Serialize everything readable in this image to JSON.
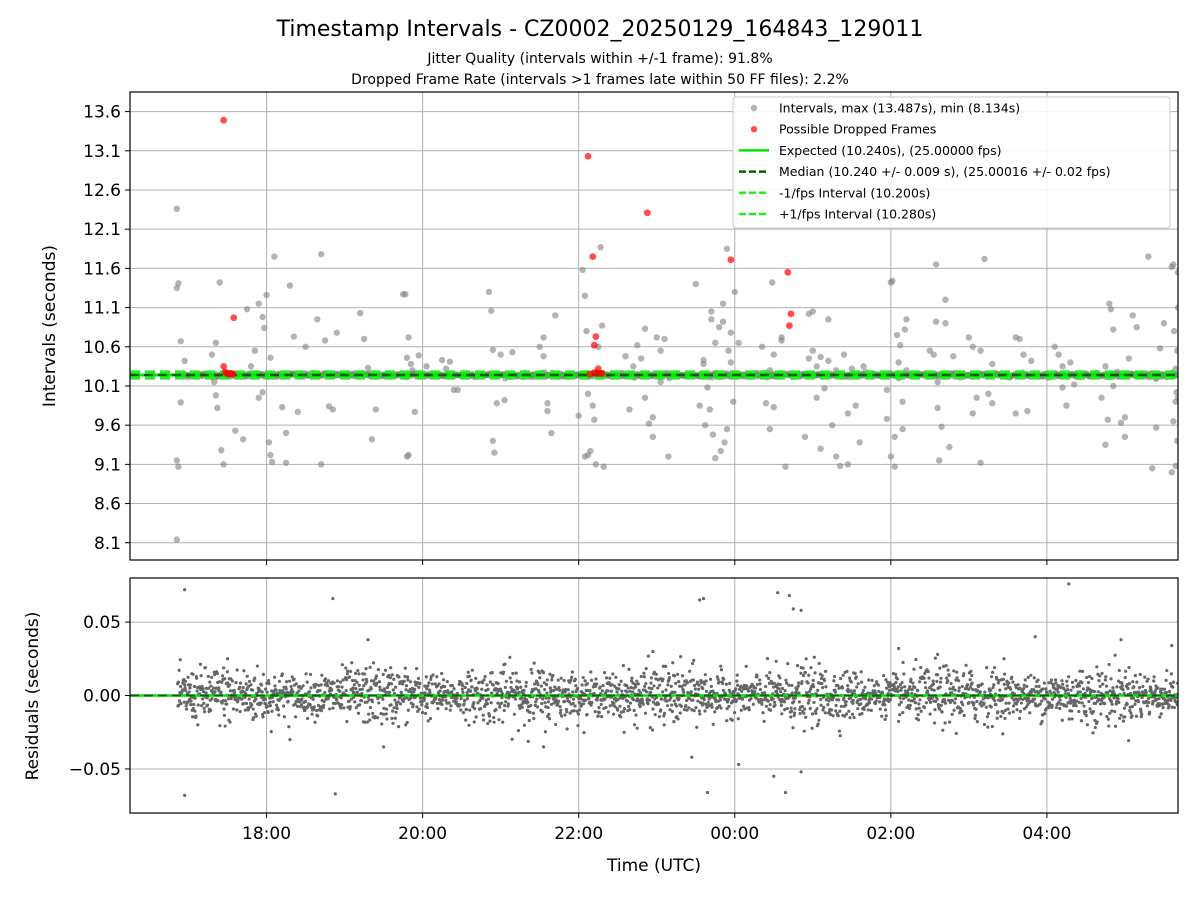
{
  "title": "Timestamp Intervals - CZ0002_20250129_164843_129011",
  "subtitle_line1": "Jitter Quality (intervals within +/-1 frame): 91.8%",
  "subtitle_line2": "Dropped Frame Rate (intervals >1 frames late within 50 FF files): 2.2%",
  "colors": {
    "intervals": "#808080",
    "dropped": "#ff0000",
    "expected": "#00e600",
    "median": "#006400",
    "fps_interval": "#22ee22",
    "residuals": "#666666",
    "grid": "#b0b0b0"
  },
  "chart_data": [
    {
      "type": "scatter",
      "title": "",
      "ylabel": "Intervals (seconds)",
      "xlabel": "",
      "x_range_hours": [
        16.25,
        29.68
      ],
      "ylim": [
        7.88,
        13.85
      ],
      "yticks": [
        8.1,
        8.6,
        9.1,
        9.6,
        10.1,
        10.6,
        11.1,
        11.6,
        12.1,
        12.6,
        13.1,
        13.6
      ],
      "ytick_labels": [
        "8.1",
        "8.6",
        "9.1",
        "9.6",
        "10.1",
        "10.6",
        "11.1",
        "11.6",
        "12.1",
        "12.6",
        "13.1",
        "13.6"
      ],
      "grid": true,
      "legend_position": "top-right",
      "legend": [
        {
          "label": "Intervals, max (13.487s), min (8.134s)",
          "kind": "dot",
          "color": "#808080"
        },
        {
          "label": "Possible Dropped Frames",
          "kind": "dot",
          "color": "#ff0000"
        },
        {
          "label": "Expected (10.240s), (25.00000 fps)",
          "kind": "solid",
          "color": "#00e600"
        },
        {
          "label": "Median (10.240 +/- 0.009 s), (25.00016 +/- 0.02 fps)",
          "kind": "dashed",
          "color": "#006400"
        },
        {
          "label": "-1/fps Interval (10.200s)",
          "kind": "dashed",
          "color": "#22ee22"
        },
        {
          "label": "+1/fps Interval (10.280s)",
          "kind": "dashed",
          "color": "#22ee22"
        }
      ],
      "expected": 10.24,
      "median": 10.24,
      "minus_fps": 10.2,
      "plus_fps": 10.28,
      "intervals_max": 13.487,
      "intervals_min": 8.134,
      "time_start": 16.86,
      "time_end": 29.68,
      "outliers": [
        [
          16.85,
          12.36
        ],
        [
          16.85,
          11.35
        ],
        [
          16.87,
          11.41
        ],
        [
          16.9,
          10.67
        ],
        [
          16.85,
          9.15
        ],
        [
          16.87,
          9.07
        ],
        [
          16.9,
          9.89
        ],
        [
          16.85,
          8.14
        ],
        [
          16.95,
          10.42
        ],
        [
          17.3,
          10.5
        ],
        [
          17.33,
          10.15
        ],
        [
          17.35,
          9.98
        ],
        [
          17.37,
          9.82
        ],
        [
          17.4,
          11.42
        ],
        [
          17.42,
          9.28
        ],
        [
          17.45,
          9.1
        ],
        [
          17.35,
          10.65
        ],
        [
          17.6,
          9.53
        ],
        [
          17.75,
          11.08
        ],
        [
          17.8,
          10.35
        ],
        [
          17.85,
          10.55
        ],
        [
          17.9,
          11.15
        ],
        [
          17.95,
          10.98
        ],
        [
          17.97,
          10.84
        ],
        [
          18.0,
          11.26
        ],
        [
          18.03,
          9.38
        ],
        [
          18.05,
          9.22
        ],
        [
          18.07,
          9.13
        ],
        [
          18.1,
          11.75
        ],
        [
          17.9,
          9.95
        ],
        [
          17.95,
          10.02
        ],
        [
          18.05,
          10.46
        ],
        [
          17.7,
          9.42
        ],
        [
          18.2,
          9.83
        ],
        [
          18.25,
          9.12
        ],
        [
          18.3,
          11.38
        ],
        [
          18.35,
          10.73
        ],
        [
          18.4,
          9.77
        ],
        [
          18.5,
          10.6
        ],
        [
          18.25,
          9.5
        ],
        [
          18.3,
          10.26
        ],
        [
          18.7,
          11.78
        ],
        [
          18.75,
          10.68
        ],
        [
          18.8,
          9.84
        ],
        [
          18.85,
          9.8
        ],
        [
          18.9,
          10.78
        ],
        [
          18.7,
          9.1
        ],
        [
          18.65,
          10.95
        ],
        [
          19.2,
          11.03
        ],
        [
          19.25,
          10.7
        ],
        [
          19.3,
          10.33
        ],
        [
          19.35,
          9.42
        ],
        [
          19.4,
          9.8
        ],
        [
          19.5,
          10.23
        ],
        [
          19.75,
          11.27
        ],
        [
          19.78,
          11.27
        ],
        [
          19.8,
          10.46
        ],
        [
          19.82,
          10.72
        ],
        [
          19.85,
          10.38
        ],
        [
          19.87,
          10.3
        ],
        [
          19.9,
          9.77
        ],
        [
          19.8,
          9.2
        ],
        [
          19.82,
          9.22
        ],
        [
          19.95,
          10.49
        ],
        [
          20.05,
          10.35
        ],
        [
          20.25,
          10.43
        ],
        [
          20.3,
          10.32
        ],
        [
          20.35,
          10.41
        ],
        [
          20.4,
          10.05
        ],
        [
          20.45,
          10.05
        ],
        [
          20.85,
          11.3
        ],
        [
          20.88,
          11.06
        ],
        [
          20.9,
          9.4
        ],
        [
          20.92,
          9.25
        ],
        [
          20.95,
          9.88
        ],
        [
          21.0,
          10.5
        ],
        [
          21.05,
          9.92
        ],
        [
          20.9,
          10.56
        ],
        [
          21.15,
          10.53
        ],
        [
          21.5,
          10.6
        ],
        [
          21.55,
          10.72
        ],
        [
          21.6,
          9.88
        ],
        [
          21.65,
          9.5
        ],
        [
          21.55,
          10.48
        ],
        [
          21.6,
          9.78
        ],
        [
          21.7,
          11.0
        ],
        [
          22.0,
          9.72
        ],
        [
          22.05,
          11.58
        ],
        [
          22.08,
          11.25
        ],
        [
          22.1,
          10.8
        ],
        [
          22.12,
          10.0
        ],
        [
          22.15,
          9.27
        ],
        [
          22.18,
          9.85
        ],
        [
          22.2,
          9.67
        ],
        [
          22.22,
          9.1
        ],
        [
          22.25,
          10.6
        ],
        [
          22.28,
          11.87
        ],
        [
          22.3,
          10.87
        ],
        [
          22.32,
          9.07
        ],
        [
          22.08,
          9.2
        ],
        [
          22.12,
          9.22
        ],
        [
          22.6,
          10.48
        ],
        [
          22.65,
          9.8
        ],
        [
          22.7,
          10.35
        ],
        [
          22.75,
          10.62
        ],
        [
          22.8,
          10.45
        ],
        [
          22.85,
          10.83
        ],
        [
          22.9,
          9.62
        ],
        [
          22.95,
          9.45
        ],
        [
          23.0,
          10.72
        ],
        [
          23.05,
          10.55
        ],
        [
          23.1,
          10.7
        ],
        [
          23.15,
          9.2
        ],
        [
          22.85,
          9.95
        ],
        [
          22.95,
          9.7
        ],
        [
          23.05,
          10.15
        ],
        [
          23.5,
          11.4
        ],
        [
          23.55,
          9.85
        ],
        [
          23.6,
          10.43
        ],
        [
          23.62,
          9.6
        ],
        [
          23.65,
          10.08
        ],
        [
          23.68,
          9.8
        ],
        [
          23.7,
          11.05
        ],
        [
          23.72,
          9.48
        ],
        [
          23.75,
          10.65
        ],
        [
          23.78,
          10.25
        ],
        [
          23.8,
          10.85
        ],
        [
          23.82,
          9.27
        ],
        [
          23.85,
          10.92
        ],
        [
          23.87,
          9.38
        ],
        [
          23.9,
          9.55
        ],
        [
          23.92,
          10.55
        ],
        [
          23.95,
          10.78
        ],
        [
          23.98,
          9.9
        ],
        [
          24.0,
          11.3
        ],
        [
          23.6,
          10.38
        ],
        [
          23.7,
          10.95
        ],
        [
          23.75,
          9.18
        ],
        [
          23.85,
          11.15
        ],
        [
          23.9,
          11.85
        ],
        [
          23.95,
          10.4
        ],
        [
          24.05,
          10.65
        ],
        [
          24.35,
          10.6
        ],
        [
          24.4,
          9.88
        ],
        [
          24.45,
          9.55
        ],
        [
          24.48,
          11.42
        ],
        [
          24.5,
          10.5
        ],
        [
          24.55,
          10.25
        ],
        [
          24.6,
          10.68
        ],
        [
          24.65,
          9.07
        ],
        [
          24.45,
          10.3
        ],
        [
          24.5,
          9.83
        ],
        [
          24.6,
          10.72
        ],
        [
          24.9,
          9.45
        ],
        [
          24.95,
          10.45
        ],
        [
          25.0,
          10.55
        ],
        [
          25.05,
          10.35
        ],
        [
          25.1,
          9.3
        ],
        [
          25.15,
          10.07
        ],
        [
          25.2,
          10.95
        ],
        [
          25.25,
          9.6
        ],
        [
          25.3,
          10.3
        ],
        [
          25.35,
          9.08
        ],
        [
          25.4,
          10.5
        ],
        [
          25.45,
          9.75
        ],
        [
          25.5,
          10.32
        ],
        [
          25.55,
          9.85
        ],
        [
          25.6,
          9.38
        ],
        [
          25.65,
          10.35
        ],
        [
          24.95,
          11.02
        ],
        [
          25.0,
          11.05
        ],
        [
          25.05,
          9.95
        ],
        [
          25.1,
          10.47
        ],
        [
          25.2,
          10.42
        ],
        [
          25.3,
          9.2
        ],
        [
          25.45,
          9.1
        ],
        [
          25.95,
          9.68
        ],
        [
          26.0,
          11.42
        ],
        [
          26.02,
          11.44
        ],
        [
          26.05,
          9.45
        ],
        [
          26.08,
          10.75
        ],
        [
          26.1,
          10.4
        ],
        [
          26.12,
          10.62
        ],
        [
          26.15,
          9.9
        ],
        [
          26.18,
          10.82
        ],
        [
          26.2,
          10.3
        ],
        [
          25.95,
          10.05
        ],
        [
          26.0,
          9.2
        ],
        [
          26.05,
          9.07
        ],
        [
          26.1,
          10.2
        ],
        [
          26.15,
          9.55
        ],
        [
          26.2,
          10.95
        ],
        [
          26.5,
          10.55
        ],
        [
          26.55,
          10.5
        ],
        [
          26.58,
          11.65
        ],
        [
          26.6,
          9.82
        ],
        [
          26.62,
          9.15
        ],
        [
          26.65,
          9.58
        ],
        [
          26.7,
          11.2
        ],
        [
          26.72,
          10.25
        ],
        [
          26.75,
          9.32
        ],
        [
          26.8,
          10.48
        ],
        [
          26.58,
          10.92
        ],
        [
          26.6,
          10.15
        ],
        [
          26.7,
          10.9
        ],
        [
          27.0,
          10.72
        ],
        [
          27.05,
          10.6
        ],
        [
          27.1,
          9.95
        ],
        [
          27.15,
          9.12
        ],
        [
          27.2,
          11.72
        ],
        [
          27.25,
          10.0
        ],
        [
          27.3,
          10.38
        ],
        [
          27.05,
          9.75
        ],
        [
          27.15,
          10.55
        ],
        [
          27.3,
          9.88
        ],
        [
          27.6,
          10.72
        ],
        [
          27.65,
          10.7
        ],
        [
          27.7,
          10.5
        ],
        [
          27.75,
          9.78
        ],
        [
          27.6,
          9.75
        ],
        [
          27.8,
          10.42
        ],
        [
          28.1,
          10.6
        ],
        [
          28.15,
          10.5
        ],
        [
          28.2,
          10.08
        ],
        [
          28.25,
          9.85
        ],
        [
          28.3,
          10.4
        ],
        [
          28.35,
          10.12
        ],
        [
          28.2,
          10.35
        ],
        [
          28.7,
          9.95
        ],
        [
          28.75,
          10.35
        ],
        [
          28.78,
          9.67
        ],
        [
          28.8,
          11.15
        ],
        [
          28.82,
          11.08
        ],
        [
          28.85,
          10.82
        ],
        [
          28.9,
          10.28
        ],
        [
          28.95,
          9.63
        ],
        [
          29.0,
          9.45
        ],
        [
          29.05,
          10.45
        ],
        [
          29.1,
          11.0
        ],
        [
          29.15,
          10.85
        ],
        [
          28.75,
          9.35
        ],
        [
          28.85,
          10.1
        ],
        [
          29.0,
          9.7
        ],
        [
          29.3,
          11.75
        ],
        [
          29.35,
          9.05
        ],
        [
          29.4,
          9.57
        ],
        [
          29.45,
          10.58
        ],
        [
          29.5,
          10.9
        ],
        [
          29.4,
          10.2
        ],
        [
          29.6,
          11.62
        ],
        [
          29.62,
          11.65
        ],
        [
          29.63,
          10.8
        ],
        [
          29.65,
          10.32
        ],
        [
          29.65,
          9.9
        ],
        [
          29.62,
          9.65
        ],
        [
          29.6,
          9.0
        ],
        [
          29.65,
          9.08
        ],
        [
          29.68,
          11.55
        ],
        [
          29.68,
          11.1
        ],
        [
          29.67,
          10.55
        ],
        [
          29.67,
          9.4
        ],
        [
          29.68,
          9.95
        ],
        [
          29.66,
          10.02
        ]
      ],
      "dropped_frames": [
        [
          17.45,
          13.49
        ],
        [
          17.58,
          10.97
        ],
        [
          17.45,
          10.35
        ],
        [
          17.47,
          10.28
        ],
        [
          17.49,
          10.26
        ],
        [
          17.51,
          10.25
        ],
        [
          17.53,
          10.26
        ],
        [
          17.55,
          10.26
        ],
        [
          17.57,
          10.25
        ],
        [
          22.12,
          13.03
        ],
        [
          22.18,
          11.75
        ],
        [
          22.22,
          10.73
        ],
        [
          22.2,
          10.62
        ],
        [
          22.25,
          10.32
        ],
        [
          22.2,
          10.27
        ],
        [
          22.24,
          10.26
        ],
        [
          22.28,
          10.26
        ],
        [
          22.14,
          10.25
        ],
        [
          22.3,
          10.26
        ],
        [
          22.88,
          12.31
        ],
        [
          23.95,
          11.71
        ],
        [
          24.68,
          11.55
        ],
        [
          24.72,
          11.02
        ],
        [
          24.7,
          10.87
        ]
      ]
    },
    {
      "type": "scatter",
      "title": "",
      "ylabel": "Residuals (seconds)",
      "xlabel": "Time (UTC)",
      "x_range_hours": [
        16.25,
        29.68
      ],
      "ylim": [
        -0.08,
        0.08
      ],
      "yticks": [
        -0.05,
        0.0,
        0.05
      ],
      "ytick_labels": [
        "−0.05",
        "0.00",
        "0.05"
      ],
      "xticks": [
        18,
        20,
        22,
        24,
        26,
        28
      ],
      "xtick_labels": [
        "18:00",
        "20:00",
        "22:00",
        "00:00",
        "02:00",
        "04:00"
      ],
      "grid": true,
      "series_generation": "approx. 2700 residual points, spread roughly ±0.02 s around 0 between 16.86 h and 29.68 h",
      "residual_outliers": [
        [
          16.95,
          0.072
        ],
        [
          16.95,
          -0.068
        ],
        [
          18.85,
          0.066
        ],
        [
          18.88,
          -0.067
        ],
        [
          23.55,
          0.065
        ],
        [
          23.6,
          0.066
        ],
        [
          24.55,
          0.07
        ],
        [
          24.7,
          0.068
        ],
        [
          24.75,
          0.059
        ],
        [
          24.85,
          0.058
        ],
        [
          23.45,
          -0.042
        ],
        [
          23.65,
          -0.066
        ],
        [
          24.05,
          -0.047
        ],
        [
          24.5,
          -0.055
        ],
        [
          24.65,
          -0.066
        ],
        [
          24.85,
          -0.052
        ],
        [
          28.28,
          0.076
        ],
        [
          27.85,
          0.04
        ],
        [
          28.95,
          0.038
        ],
        [
          29.6,
          0.034
        ],
        [
          17.5,
          0.025
        ],
        [
          19.3,
          0.038
        ],
        [
          19.5,
          -0.035
        ],
        [
          26.1,
          0.032
        ],
        [
          26.6,
          0.028
        ],
        [
          27.45,
          0.025
        ],
        [
          18.3,
          -0.03
        ],
        [
          21.55,
          -0.035
        ],
        [
          22.95,
          0.03
        ]
      ]
    }
  ]
}
